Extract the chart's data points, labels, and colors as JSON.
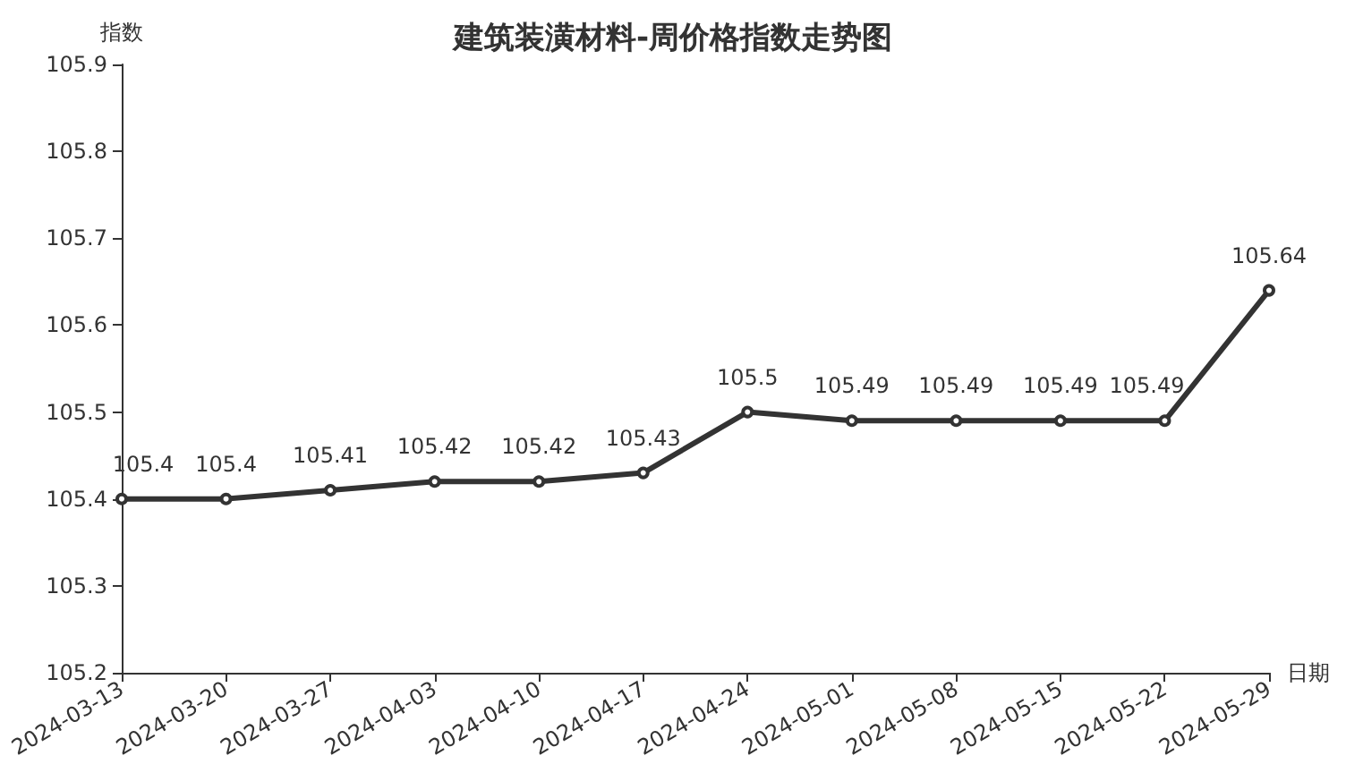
{
  "chart_data": {
    "type": "line",
    "title": "建筑装潢材料-周价格指数走势图",
    "xlabel": "日期",
    "ylabel": "指数",
    "categories": [
      "2024-03-13",
      "2024-03-20",
      "2024-03-27",
      "2024-04-03",
      "2024-04-10",
      "2024-04-17",
      "2024-04-24",
      "2024-05-01",
      "2024-05-08",
      "2024-05-15",
      "2024-05-22",
      "2024-05-29"
    ],
    "series": [
      {
        "color": "#333333",
        "values": [
          105.4,
          105.4,
          105.41,
          105.42,
          105.42,
          105.43,
          105.5,
          105.49,
          105.49,
          105.49,
          105.49,
          105.64
        ]
      }
    ],
    "ylim": [
      105.2,
      105.9
    ],
    "yticks": [
      105.2,
      105.3,
      105.4,
      105.5,
      105.6,
      105.7,
      105.8,
      105.9
    ],
    "grid": false,
    "marker": "circle",
    "line_style": "solid",
    "data_labels": true
  }
}
